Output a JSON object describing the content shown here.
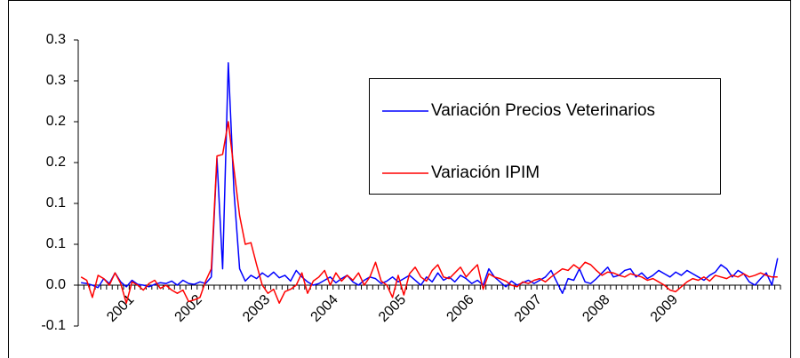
{
  "chart_data": {
    "type": "line",
    "categories": [
      null,
      null,
      null,
      null,
      null,
      null,
      null,
      null,
      null,
      "2001",
      null,
      null,
      null,
      null,
      null,
      null,
      null,
      null,
      null,
      null,
      null,
      "2002",
      null,
      null,
      null,
      null,
      null,
      null,
      null,
      null,
      null,
      null,
      null,
      "2003",
      null,
      null,
      null,
      null,
      null,
      null,
      null,
      null,
      null,
      null,
      null,
      "2004",
      null,
      null,
      null,
      null,
      null,
      null,
      null,
      null,
      null,
      null,
      null,
      "2005",
      null,
      null,
      null,
      null,
      null,
      null,
      null,
      null,
      null,
      null,
      null,
      "2006",
      null,
      null,
      null,
      null,
      null,
      null,
      null,
      null,
      null,
      null,
      null,
      "2007",
      null,
      null,
      null,
      null,
      null,
      null,
      null,
      null,
      null,
      null,
      null,
      "2008",
      null,
      null,
      null,
      null,
      null,
      null,
      null,
      null,
      null,
      null,
      null,
      "2009",
      null,
      null,
      null,
      null,
      null,
      null,
      null,
      null,
      null,
      null,
      null,
      null,
      null,
      null,
      null,
      null,
      null,
      null
    ],
    "series": [
      {
        "name": "Variación Precios Veterinarios",
        "color": "#0000ff",
        "values": [
          0.003,
          0.002,
          0.0,
          -0.003,
          0.008,
          0.002,
          0.015,
          0.004,
          -0.002,
          0.006,
          0.001,
          0.0,
          -0.002,
          0.001,
          0.003,
          0.002,
          0.005,
          0.0,
          0.006,
          0.002,
          0.001,
          0.004,
          0.002,
          0.01,
          0.155,
          0.02,
          0.272,
          0.115,
          0.02,
          0.005,
          0.012,
          0.008,
          0.015,
          0.01,
          0.016,
          0.009,
          0.012,
          0.005,
          0.018,
          0.01,
          0.004,
          0.0,
          0.002,
          0.006,
          0.01,
          0.003,
          0.008,
          0.012,
          0.004,
          0.0,
          0.006,
          0.01,
          0.008,
          0.002,
          0.005,
          0.01,
          0.004,
          0.008,
          0.012,
          0.006,
          0.0,
          0.01,
          0.004,
          0.015,
          0.006,
          0.01,
          0.004,
          0.012,
          0.008,
          0.002,
          0.006,
          0.0,
          0.02,
          0.01,
          0.004,
          -0.002,
          0.005,
          0.0,
          0.003,
          0.006,
          0.002,
          0.006,
          0.01,
          0.018,
          0.004,
          -0.01,
          0.008,
          0.006,
          0.02,
          0.004,
          0.002,
          0.008,
          0.015,
          0.022,
          0.01,
          0.012,
          0.018,
          0.02,
          0.01,
          0.015,
          0.008,
          0.012,
          0.018,
          0.014,
          0.01,
          0.016,
          0.012,
          0.018,
          0.014,
          0.01,
          0.006,
          0.012,
          0.016,
          0.025,
          0.02,
          0.01,
          0.018,
          0.014,
          0.004,
          0.0,
          0.008,
          0.015,
          0.0,
          0.033
        ]
      },
      {
        "name": "Variación IPIM",
        "color": "#ff0000",
        "values": [
          0.01,
          0.006,
          -0.015,
          0.012,
          0.008,
          0.0,
          0.015,
          0.002,
          -0.022,
          0.004,
          0.0,
          -0.006,
          0.002,
          0.006,
          -0.004,
          0.0,
          -0.006,
          -0.01,
          -0.006,
          -0.02,
          -0.018,
          -0.015,
          0.005,
          0.02,
          0.158,
          0.16,
          0.2,
          0.142,
          0.085,
          0.05,
          0.052,
          0.025,
          0.0,
          -0.01,
          -0.005,
          -0.022,
          -0.008,
          -0.005,
          0.0,
          0.015,
          -0.01,
          0.005,
          0.01,
          0.018,
          0.0,
          0.015,
          0.005,
          0.012,
          0.006,
          0.015,
          0.0,
          0.01,
          0.028,
          0.005,
          0.0,
          -0.015,
          0.012,
          -0.012,
          0.014,
          0.022,
          0.01,
          0.005,
          0.018,
          0.025,
          0.01,
          0.008,
          0.015,
          0.022,
          0.01,
          0.018,
          0.025,
          -0.005,
          0.014,
          0.01,
          0.008,
          0.005,
          0.0,
          -0.002,
          0.004,
          0.002,
          0.006,
          0.008,
          0.004,
          0.01,
          0.015,
          0.02,
          0.018,
          0.025,
          0.02,
          0.028,
          0.025,
          0.018,
          0.012,
          0.016,
          0.015,
          0.012,
          0.01,
          0.014,
          0.012,
          0.01,
          0.006,
          0.008,
          0.004,
          0.0,
          -0.006,
          -0.008,
          -0.002,
          0.004,
          0.008,
          0.006,
          0.01,
          0.005,
          0.012,
          0.01,
          0.008,
          0.012,
          0.01,
          0.014,
          0.01,
          0.012,
          0.015,
          0.012,
          0.01,
          0.01
        ]
      }
    ],
    "ylim": [
      -0.05,
      0.3
    ],
    "yticks": [
      {
        "value": -0.05,
        "label": "-0.1"
      },
      {
        "value": 0,
        "label": "0.0"
      },
      {
        "value": 0.05,
        "label": "0.1"
      },
      0.1,
      {
        "value": 0.15,
        "label": "0.2"
      },
      0.2,
      {
        "value": 0.25,
        "label": "0.3"
      },
      0.3
    ],
    "grid": false,
    "legend": "right"
  }
}
